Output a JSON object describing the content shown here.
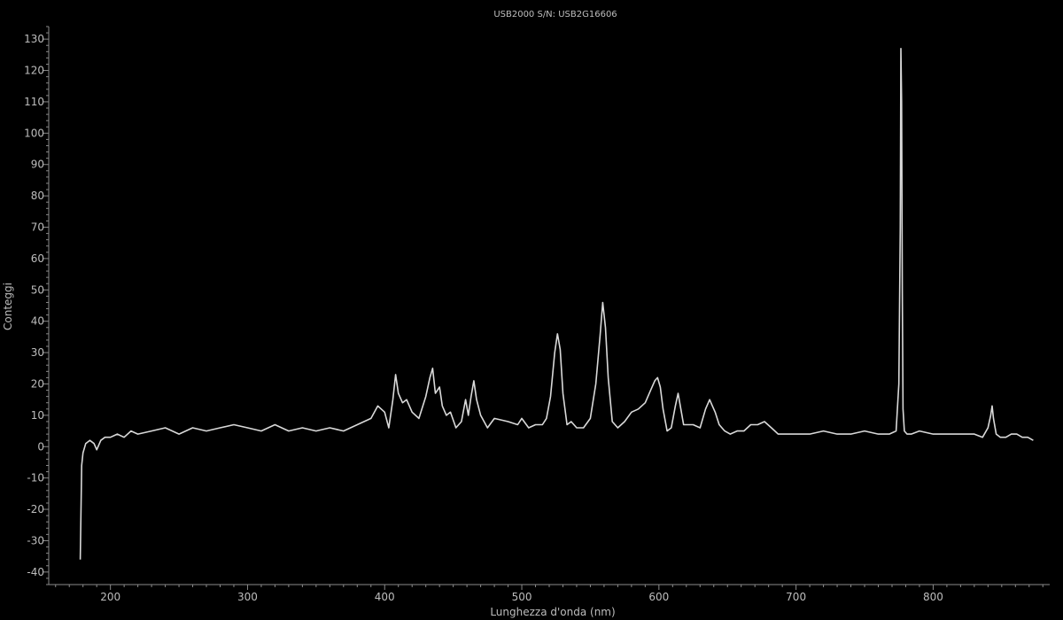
{
  "window": {
    "background": "#000000"
  },
  "chart_data": {
    "type": "line",
    "title": "USB2000 S/N: USB2G16606",
    "xlabel": "Lunghezza d'onda (nm)",
    "ylabel": "Conteggi",
    "xlim": [
      155,
      885
    ],
    "ylim": [
      -44,
      134
    ],
    "xticks": [
      200,
      300,
      400,
      500,
      600,
      700,
      800
    ],
    "yticks": [
      -40,
      -30,
      -20,
      -10,
      0,
      10,
      20,
      30,
      40,
      50,
      60,
      70,
      80,
      90,
      100,
      110,
      120,
      130
    ],
    "grid": false,
    "legend": "none",
    "line_color": "#d9d9d9",
    "axis_color": "#8a8a8a",
    "text_color": "#bdbdbd",
    "series": [
      {
        "x": [
          178,
          179,
          180,
          182,
          185,
          188,
          190,
          193,
          196,
          200,
          205,
          210,
          215,
          220,
          230,
          240,
          250,
          260,
          270,
          280,
          290,
          300,
          310,
          320,
          330,
          340,
          350,
          360,
          370,
          380,
          390,
          395,
          400,
          403,
          406,
          408,
          410,
          413,
          416,
          420,
          425,
          430,
          433,
          435,
          437,
          440,
          442,
          445,
          448,
          452,
          456,
          459,
          461,
          463,
          465,
          467,
          470,
          475,
          480,
          490,
          497,
          500,
          505,
          510,
          515,
          518,
          521,
          524,
          526,
          528,
          530,
          533,
          536,
          540,
          545,
          550,
          554,
          557,
          559,
          561,
          563,
          566,
          570,
          575,
          580,
          585,
          590,
          594,
          597,
          599,
          601,
          603,
          606,
          609,
          612,
          614,
          616,
          618,
          620,
          625,
          630,
          634,
          637,
          639,
          641,
          644,
          648,
          652,
          657,
          662,
          667,
          672,
          677,
          682,
          687,
          692,
          700,
          710,
          720,
          730,
          740,
          750,
          760,
          768,
          773,
          775,
          776,
          776.5,
          777,
          777.5,
          778,
          779,
          781,
          784,
          790,
          800,
          810,
          820,
          830,
          836,
          840,
          842,
          843,
          844,
          846,
          849,
          853,
          857,
          861,
          865,
          869,
          873
        ],
        "y": [
          -36,
          -6,
          -2,
          1,
          2,
          1,
          -1,
          2,
          3,
          3,
          4,
          3,
          5,
          4,
          5,
          6,
          4,
          6,
          5,
          6,
          7,
          6,
          5,
          7,
          5,
          6,
          5,
          6,
          5,
          7,
          9,
          13,
          11,
          6,
          15,
          23,
          17,
          14,
          15,
          11,
          9,
          16,
          22,
          25,
          17,
          19,
          13,
          10,
          11,
          6,
          8,
          15,
          10,
          16,
          21,
          15,
          10,
          6,
          9,
          8,
          7,
          9,
          6,
          7,
          7,
          9,
          16,
          30,
          36,
          31,
          17,
          7,
          8,
          6,
          6,
          9,
          20,
          35,
          46,
          38,
          22,
          8,
          6,
          8,
          11,
          12,
          14,
          18,
          21,
          22,
          19,
          12,
          5,
          6,
          13,
          17,
          12,
          7,
          7,
          7,
          6,
          12,
          15,
          13,
          11,
          7,
          5,
          4,
          5,
          5,
          7,
          7,
          8,
          6,
          4,
          4,
          4,
          4,
          5,
          4,
          4,
          5,
          4,
          4,
          5,
          20,
          70,
          127,
          110,
          50,
          12,
          5,
          4,
          4,
          5,
          4,
          4,
          4,
          4,
          3,
          6,
          10,
          13,
          9,
          4,
          3,
          3,
          4,
          4,
          3,
          3,
          2
        ]
      }
    ]
  }
}
